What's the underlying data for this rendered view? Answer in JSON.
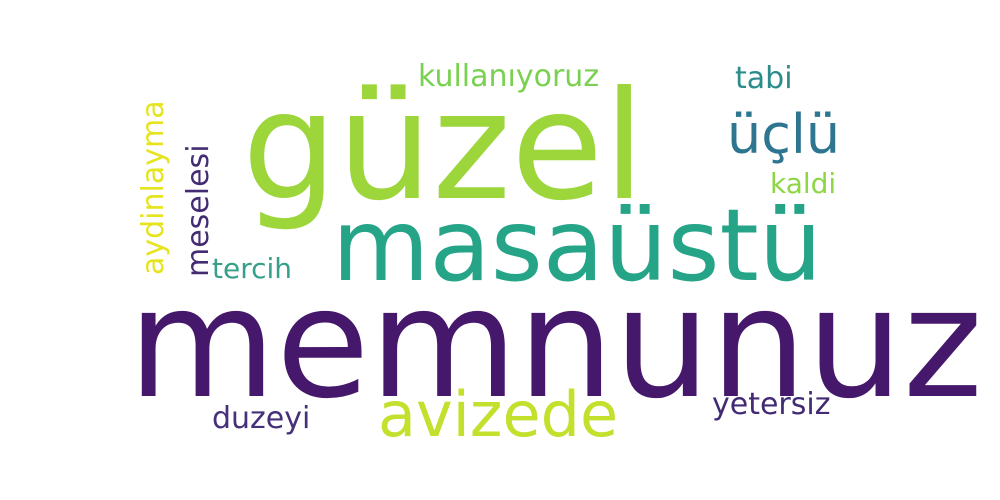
{
  "words": [
    {
      "id": "memnunuz",
      "text": "memnunuz",
      "color": "#46186b"
    },
    {
      "id": "guzel",
      "text": "güzel",
      "color": "#9cd63b"
    },
    {
      "id": "masaustu",
      "text": "masaüstü",
      "color": "#25a488"
    },
    {
      "id": "avizede",
      "text": "avizede",
      "color": "#c2e02c"
    },
    {
      "id": "uclu",
      "text": "üçlü",
      "color": "#2e7690"
    },
    {
      "id": "kullaniyoruz",
      "text": "kullanıyoruz",
      "color": "#7ad151"
    },
    {
      "id": "tabi",
      "text": "tabi",
      "color": "#2c8c8c"
    },
    {
      "id": "kaldi",
      "text": "kaldi",
      "color": "#8ed645"
    },
    {
      "id": "yetersiz",
      "text": "yetersiz",
      "color": "#432a74"
    },
    {
      "id": "duzeyi",
      "text": "duzeyi",
      "color": "#46307a"
    },
    {
      "id": "tercih",
      "text": "tercih",
      "color": "#36a08a"
    },
    {
      "id": "aydinlayma",
      "text": "aydinlayma",
      "color": "#e6e41f"
    },
    {
      "id": "meselesi",
      "text": "meselesi",
      "color": "#442c72"
    }
  ]
}
